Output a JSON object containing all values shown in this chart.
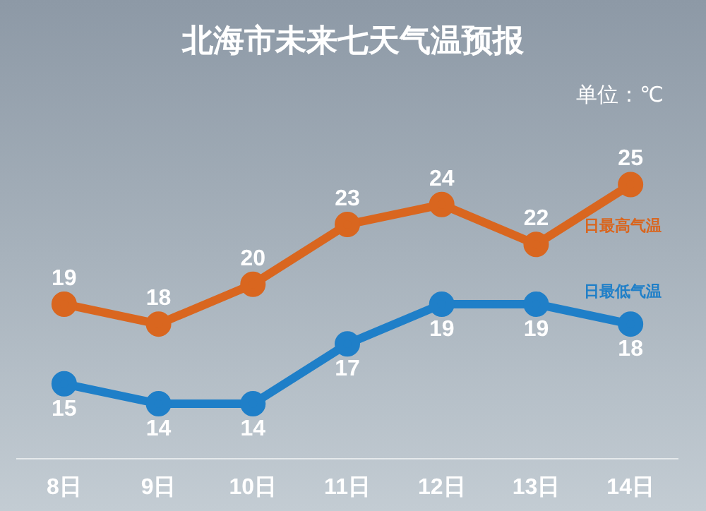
{
  "chart_data": {
    "type": "line",
    "title": "北海市未来七天气温预报",
    "annotations": [
      "单位：℃"
    ],
    "categories": [
      "8日",
      "9日",
      "10日",
      "11日",
      "12日",
      "13日",
      "14日"
    ],
    "series": [
      {
        "name": "日最高气温",
        "color": "#d9661f",
        "values": [
          19,
          18,
          20,
          23,
          24,
          22,
          25
        ]
      },
      {
        "name": "日最低气温",
        "color": "#1f7fc8",
        "values": [
          15,
          14,
          14,
          17,
          19,
          19,
          18
        ]
      }
    ],
    "data_labels": true,
    "marker": "circle",
    "line_style": "solid",
    "grid": false,
    "legend": false,
    "tick_labels": "x"
  }
}
